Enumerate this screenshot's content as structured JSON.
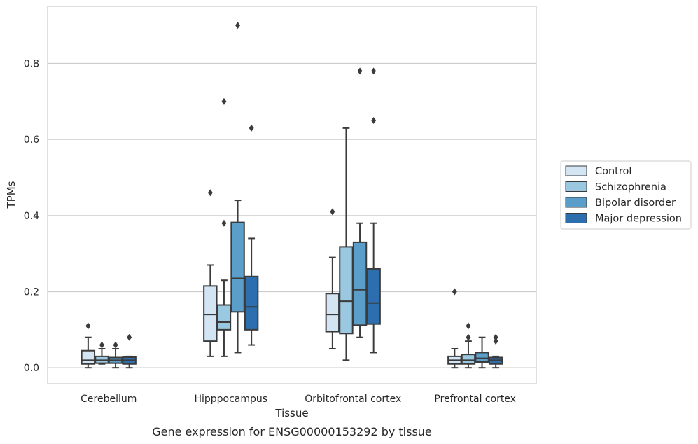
{
  "chart_data": {
    "type": "box",
    "title": "",
    "caption": "Gene expression for ENSG00000153292 by tissue",
    "xlabel": "Tissue",
    "ylabel": "TPMs",
    "ylim": [
      -0.042,
      0.95
    ],
    "yticks": [
      0.0,
      0.2,
      0.4,
      0.6,
      0.8
    ],
    "ytick_labels": [
      "0.0",
      "0.2",
      "0.4",
      "0.6",
      "0.8"
    ],
    "grid": "horizontal",
    "legend_position": "right",
    "categories": [
      "Cerebellum",
      "Hipppocampus",
      "Orbitofrontal cortex",
      "Prefrontal cortex"
    ],
    "series": [
      {
        "name": "Control",
        "color": "#d3e4f3",
        "boxes": [
          {
            "whislo": 0.0,
            "q1": 0.01,
            "med": 0.02,
            "q3": 0.045,
            "whishi": 0.08,
            "fliers": [
              0.11
            ]
          },
          {
            "whislo": 0.03,
            "q1": 0.07,
            "med": 0.14,
            "q3": 0.215,
            "whishi": 0.27,
            "fliers": [
              0.46
            ]
          },
          {
            "whislo": 0.05,
            "q1": 0.095,
            "med": 0.14,
            "q3": 0.195,
            "whishi": 0.29,
            "fliers": [
              0.41
            ]
          },
          {
            "whislo": 0.0,
            "q1": 0.01,
            "med": 0.02,
            "q3": 0.03,
            "whishi": 0.05,
            "fliers": [
              0.2
            ]
          }
        ]
      },
      {
        "name": "Schizophrenia",
        "color": "#9ac8e0",
        "boxes": [
          {
            "whislo": 0.01,
            "q1": 0.012,
            "med": 0.02,
            "q3": 0.03,
            "whishi": 0.05,
            "fliers": [
              0.06
            ]
          },
          {
            "whislo": 0.03,
            "q1": 0.1,
            "med": 0.12,
            "q3": 0.165,
            "whishi": 0.23,
            "fliers": [
              0.38,
              0.7
            ]
          },
          {
            "whislo": 0.02,
            "q1": 0.09,
            "med": 0.175,
            "q3": 0.318,
            "whishi": 0.63,
            "fliers": []
          },
          {
            "whislo": 0.0,
            "q1": 0.01,
            "med": 0.02,
            "q3": 0.035,
            "whishi": 0.07,
            "fliers": [
              0.08,
              0.11
            ]
          }
        ]
      },
      {
        "name": "Bipolar disorder",
        "color": "#5a9ec9",
        "boxes": [
          {
            "whislo": 0.0,
            "q1": 0.012,
            "med": 0.02,
            "q3": 0.027,
            "whishi": 0.05,
            "fliers": [
              0.06
            ]
          },
          {
            "whislo": 0.04,
            "q1": 0.147,
            "med": 0.235,
            "q3": 0.382,
            "whishi": 0.44,
            "fliers": [
              0.9
            ]
          },
          {
            "whislo": 0.08,
            "q1": 0.112,
            "med": 0.205,
            "q3": 0.33,
            "whishi": 0.38,
            "fliers": [
              0.78
            ]
          },
          {
            "whislo": 0.0,
            "q1": 0.015,
            "med": 0.025,
            "q3": 0.04,
            "whishi": 0.08,
            "fliers": []
          }
        ]
      },
      {
        "name": "Major depression",
        "color": "#2d6fae",
        "boxes": [
          {
            "whislo": 0.0,
            "q1": 0.01,
            "med": 0.02,
            "q3": 0.028,
            "whishi": 0.03,
            "fliers": [
              0.08
            ]
          },
          {
            "whislo": 0.06,
            "q1": 0.1,
            "med": 0.16,
            "q3": 0.24,
            "whishi": 0.34,
            "fliers": [
              0.63
            ]
          },
          {
            "whislo": 0.04,
            "q1": 0.115,
            "med": 0.17,
            "q3": 0.26,
            "whishi": 0.38,
            "fliers": [
              0.65,
              0.78
            ]
          },
          {
            "whislo": 0.0,
            "q1": 0.01,
            "med": 0.02,
            "q3": 0.027,
            "whishi": 0.03,
            "fliers": [
              0.07,
              0.08
            ]
          }
        ]
      }
    ]
  }
}
